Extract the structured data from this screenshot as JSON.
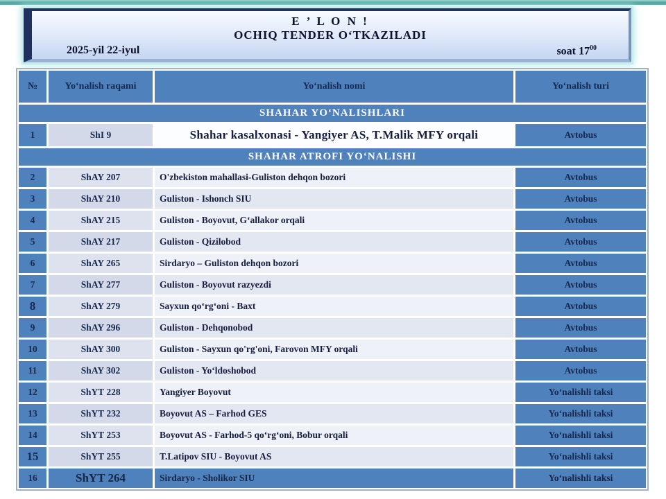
{
  "banner": {
    "line1": "E ’ L O N !",
    "line2": "OCHIQ TENDER OʻTKAZILADI",
    "date": "2025-yil 22-iyul",
    "time_prefix": "soat 17",
    "time_sup": "00"
  },
  "table": {
    "columns": {
      "num": "№",
      "code": "Yoʻnalish raqami",
      "name": "Yoʻnalish nomi",
      "type": "Yoʻnalish turi"
    },
    "sections": [
      {
        "title": "SHAHAR YOʻNALISHLARI",
        "rows": [
          {
            "num": "1",
            "code": "ShI 9",
            "name": "Shahar kasalxonasi - Yangiyer AS, T.Malik MFY orqali",
            "type": "Avtobus",
            "name_large": true
          }
        ]
      },
      {
        "title": "SHAHAR ATROFI YOʻNALISHI",
        "rows": [
          {
            "num": "2",
            "code": "ShAY 207",
            "name": "O'zbekiston mahallasi-Guliston dehqon bozori",
            "type": "Avtobus"
          },
          {
            "num": "3",
            "code": "ShAY 210",
            "name": "Guliston - Ishonch SIU",
            "type": "Avtobus"
          },
          {
            "num": "4",
            "code": "ShAY 215",
            "name": "Guliston - Boyovut, Gʻallakor orqali",
            "type": "Avtobus"
          },
          {
            "num": "5",
            "code": "ShAY 217",
            "name": "Guliston - Qizilobod",
            "type": "Avtobus"
          },
          {
            "num": "6",
            "code": "ShAY 265",
            "name": "Sirdaryo – Guliston dehqon bozori",
            "type": "Avtobus"
          },
          {
            "num": "7",
            "code": "ShAY 277",
            "name": "Guliston - Boyovut razyezdi",
            "type": "Avtobus"
          },
          {
            "num": "8",
            "code": "ShAY 279",
            "name": "Sayxun qoʻrgʻoni - Baxt",
            "type": "Avtobus",
            "num_large": true
          },
          {
            "num": "9",
            "code": "ShAY 296",
            "name": "Guliston - Dehqonobod",
            "type": "Avtobus"
          },
          {
            "num": "10",
            "code": "ShAY 300",
            "name": "Guliston - Sayxun qo'rg'oni, Farovon MFY orqali",
            "type": "Avtobus"
          },
          {
            "num": "11",
            "code": "ShAY 302",
            "name": "Guliston - Yoʻldoshobod",
            "type": "Avtobus"
          },
          {
            "num": "12",
            "code": "ShYT 228",
            "name": "Yangiyer Boyovut",
            "type": "Yoʻnalishli taksi"
          },
          {
            "num": "13",
            "code": "ShYT 232",
            "name": "Boyovut AS – Farhod GES",
            "type": "Yoʻnalishli taksi"
          },
          {
            "num": "14",
            "code": "ShYT 253",
            "name": "Boyovut AS - Farhod-5 qoʻrgʻoni, Bobur orqali",
            "type": "Yoʻnalishli taksi"
          },
          {
            "num": "15",
            "code": "ShYT 255",
            "name": "T.Latipov SIU - Boyovut AS",
            "type": "Yoʻnalishli taksi",
            "num_large": true
          },
          {
            "num": "16",
            "code": "ShYT 264",
            "name": "Sirdaryo - Sholikor SIU",
            "type": "Yoʻnalishli taksi",
            "code_large": true,
            "highlight": true
          }
        ]
      }
    ]
  },
  "colors": {
    "cell_blue": "#4f81bd",
    "navy_text": "#17294e",
    "banner_bevel": "#20315e",
    "banner_glow": "#b2e7e4",
    "top_bar_teal": "#4aa29d",
    "row_light": "#eff1f8",
    "row_dark": "#e3e7f2"
  }
}
